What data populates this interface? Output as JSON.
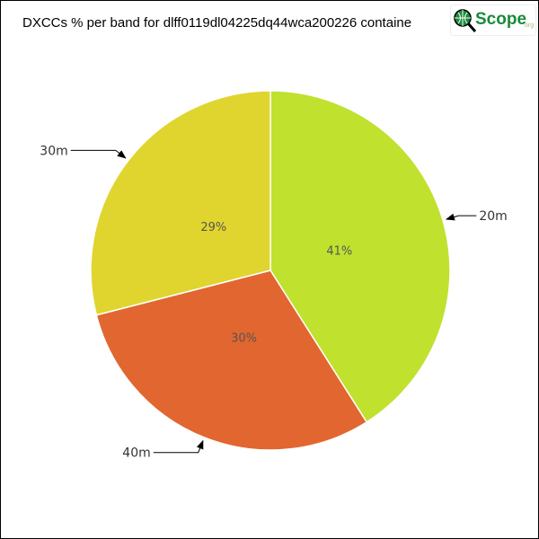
{
  "chart_data": {
    "type": "pie",
    "title": "DXCCs % per band for dlff0119dl04225dq44wca200226 containe",
    "slices": [
      {
        "label": "20m",
        "value": 41,
        "value_label": "41%",
        "color": "#c0e12e"
      },
      {
        "label": "40m",
        "value": 30,
        "value_label": "30%",
        "color": "#e2662f"
      },
      {
        "label": "30m",
        "value": 29,
        "value_label": "29%",
        "color": "#e0d52e"
      }
    ],
    "start_angle": "top",
    "direction": "clockwise",
    "legend": "none"
  },
  "logo": {
    "text": "Scope",
    "suffix": "org"
  }
}
